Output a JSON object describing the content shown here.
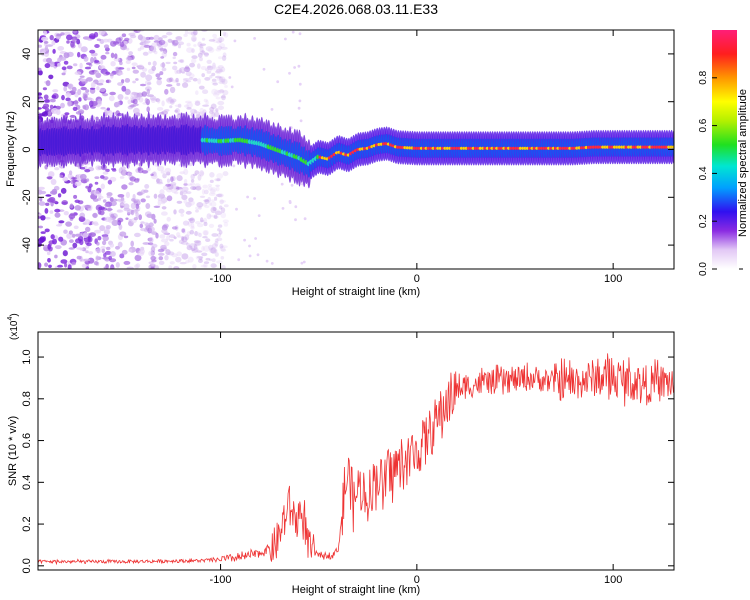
{
  "title": "C2E4.2026.068.03.11.E33",
  "chart_data": [
    {
      "type": "heatmap",
      "title": "C2E4.2026.068.03.11.E33",
      "xlabel": "Height of straight line (km)",
      "ylabel": "Frequency (Hz)",
      "xlim": [
        -193,
        131
      ],
      "ylim": [
        -50,
        50
      ],
      "xticks": [
        -100,
        0,
        100
      ],
      "xtick_labels": [
        "-100",
        "0",
        "100"
      ],
      "yticks": [
        -40,
        -20,
        0,
        20,
        40
      ],
      "ytick_labels": [
        "-40",
        "-20",
        "0",
        "20",
        "40"
      ],
      "colorbar": {
        "label": "Normalized spectral amplitude",
        "range": [
          0,
          1
        ],
        "ticks": [
          0.0,
          0.2,
          0.4,
          0.6,
          0.8
        ],
        "tick_labels": [
          "0.0",
          "0.2",
          "0.4",
          "0.6",
          "0.8"
        ]
      },
      "ridge": {
        "x": [
          -193,
          -150,
          -110,
          -100,
          -90,
          -80,
          -70,
          -60,
          -55,
          -50,
          -45,
          -40,
          -35,
          -30,
          -25,
          -20,
          -15,
          -10,
          0,
          20,
          40,
          60,
          80,
          90,
          100,
          131
        ],
        "y": [
          3,
          4,
          4,
          3.5,
          4,
          2.5,
          -0.5,
          -3.5,
          -6,
          -3,
          -4,
          -1,
          -2.5,
          0,
          0.5,
          2,
          2.5,
          1,
          0.5,
          0.5,
          0.5,
          0.5,
          0.5,
          1,
          1,
          1
        ]
      }
    },
    {
      "type": "line",
      "xlabel": "Height of straight line (km)",
      "ylabel": "SNR (10 * v/v)",
      "y_multiplier": "(x10",
      "y_multiplier_exp": "4",
      "y_multiplier_close": ")",
      "xlim": [
        -193,
        131
      ],
      "ylim": [
        -0.02,
        1.12
      ],
      "xticks": [
        -100,
        0,
        100
      ],
      "xtick_labels": [
        "-100",
        "0",
        "100"
      ],
      "yticks": [
        0.0,
        0.2,
        0.4,
        0.6,
        0.8,
        1.0
      ],
      "ytick_labels": [
        "0.0",
        "0.2",
        "0.4",
        "0.6",
        "0.8",
        "1.0"
      ],
      "color": "#ee3333",
      "series": [
        {
          "name": "SNR",
          "x": [
            -193,
            -150,
            -110,
            -100,
            -90,
            -80,
            -72,
            -68,
            -65,
            -62,
            -58,
            -55,
            -52,
            -48,
            -45,
            -42,
            -40,
            -37,
            -35,
            -32,
            -30,
            -27,
            -25,
            -22,
            -20,
            -17,
            -15,
            -12,
            -10,
            -8,
            -5,
            -3,
            0,
            3,
            5,
            8,
            10,
            13,
            15,
            18,
            20,
            25,
            30,
            35,
            40,
            50,
            60,
            70,
            80,
            90,
            100,
            110,
            120,
            131
          ],
          "y": [
            0.02,
            0.02,
            0.025,
            0.03,
            0.04,
            0.06,
            0.1,
            0.2,
            0.3,
            0.22,
            0.25,
            0.08,
            0.06,
            0.05,
            0.05,
            0.06,
            0.08,
            0.35,
            0.45,
            0.3,
            0.38,
            0.36,
            0.33,
            0.4,
            0.44,
            0.38,
            0.42,
            0.46,
            0.48,
            0.47,
            0.5,
            0.52,
            0.55,
            0.58,
            0.62,
            0.65,
            0.7,
            0.74,
            0.78,
            0.82,
            0.84,
            0.86,
            0.87,
            0.88,
            0.88,
            0.89,
            0.9,
            0.88,
            0.88,
            0.9,
            0.9,
            0.88,
            0.87,
            0.88
          ]
        }
      ]
    }
  ]
}
